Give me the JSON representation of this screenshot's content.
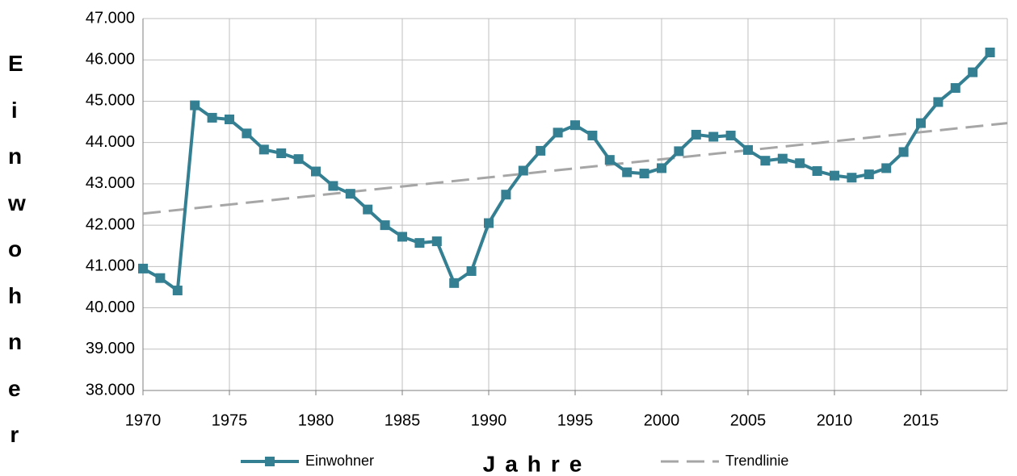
{
  "chart_data": {
    "type": "line",
    "y_label": "Einwohner",
    "x_label": "Jahre",
    "xlim": [
      1970,
      2020
    ],
    "xticks": [
      1970,
      1975,
      1980,
      1985,
      1990,
      1995,
      2000,
      2005,
      2010,
      2015
    ],
    "ylim": [
      38000,
      47000
    ],
    "yticks": [
      {
        "value": 38000,
        "label": "38.000"
      },
      {
        "value": 39000,
        "label": "39.000"
      },
      {
        "value": 40000,
        "label": "40.000"
      },
      {
        "value": 41000,
        "label": "41.000"
      },
      {
        "value": 42000,
        "label": "42.000"
      },
      {
        "value": 43000,
        "label": "43.000"
      },
      {
        "value": 44000,
        "label": "44.000"
      },
      {
        "value": 45000,
        "label": "45.000"
      },
      {
        "value": 46000,
        "label": "46.000"
      },
      {
        "value": 47000,
        "label": "47.000"
      }
    ],
    "grid": true,
    "legend": "bottom",
    "series": [
      {
        "name": "Einwohner",
        "color": "#347f92",
        "style": "solid",
        "markers": true,
        "x": [
          1970,
          1971,
          1972,
          1973,
          1974,
          1975,
          1976,
          1977,
          1978,
          1979,
          1980,
          1981,
          1982,
          1983,
          1984,
          1985,
          1986,
          1987,
          1988,
          1989,
          1990,
          1991,
          1992,
          1993,
          1994,
          1995,
          1996,
          1997,
          1998,
          1999,
          2000,
          2001,
          2002,
          2003,
          2004,
          2005,
          2006,
          2007,
          2008,
          2009,
          2010,
          2011,
          2012,
          2013,
          2014,
          2015,
          2016,
          2017,
          2018,
          2019
        ],
        "values": [
          40950,
          40720,
          40420,
          44900,
          44600,
          44560,
          44220,
          43830,
          43740,
          43600,
          43300,
          42950,
          42760,
          42380,
          42000,
          41720,
          41570,
          41610,
          40600,
          40890,
          42050,
          42740,
          43320,
          43800,
          44240,
          44420,
          44170,
          43580,
          43280,
          43250,
          43380,
          43790,
          44190,
          44140,
          44170,
          43820,
          43560,
          43610,
          43500,
          43310,
          43200,
          43150,
          43230,
          43380,
          43770,
          44470,
          44980,
          45320,
          45700,
          46180
        ]
      },
      {
        "name": "Trendlinie",
        "color": "#a6a6a6",
        "style": "dashed",
        "markers": false,
        "x": [
          1970,
          2020
        ],
        "values": [
          42280,
          44470
        ]
      }
    ]
  }
}
